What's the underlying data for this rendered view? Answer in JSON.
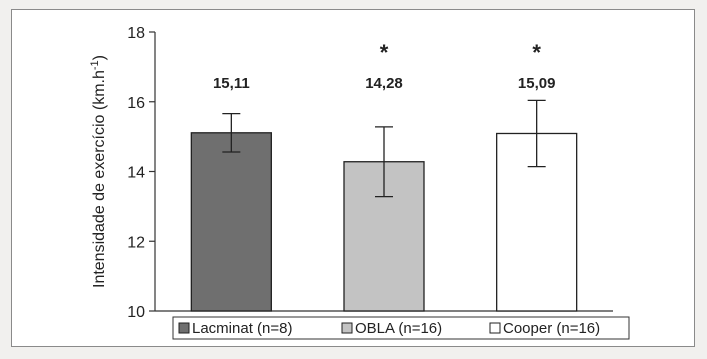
{
  "chart_data": {
    "type": "bar",
    "categories": [
      "Lacminat (n=8)",
      "OBLA (n=16)",
      "Cooper (n=16)"
    ],
    "values": [
      15.11,
      14.28,
      15.09
    ],
    "errors": [
      0.55,
      1.0,
      0.95
    ],
    "data_labels": [
      "15,11",
      "14,28",
      "15,09"
    ],
    "significance": [
      "",
      "*",
      "*"
    ],
    "colors": [
      "#6f6f6f",
      "#c3c3c3",
      "#ffffff"
    ],
    "ylabel": "Intensidade de exercício (km.h",
    "ylabel_sup": "-1",
    "ylabel_close": ")",
    "ylim": [
      10,
      18
    ],
    "yticks": [
      10,
      12,
      14,
      16,
      18
    ],
    "grid": false,
    "legend": {
      "position": "bottom",
      "entries": [
        "Lacminat (n=8)",
        "OBLA (n=16)",
        "Cooper (n=16)"
      ]
    }
  }
}
